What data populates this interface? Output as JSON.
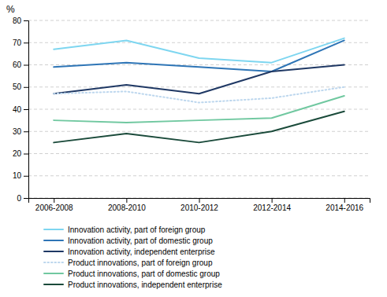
{
  "chart_data": {
    "type": "line",
    "ylabel": "%",
    "categories": [
      "2006-2008",
      "2008-2010",
      "2010-2012",
      "2012-2014",
      "2014-2016"
    ],
    "series": [
      {
        "name": "Innovation activity, part of foreign group",
        "color": "#7ed6f0",
        "line_style": "solid",
        "values": [
          67,
          71,
          63,
          61,
          72
        ]
      },
      {
        "name": "Innovation activity, part of domestic group",
        "color": "#2e75b6",
        "line_style": "solid",
        "values": [
          59,
          61,
          59,
          57,
          71
        ]
      },
      {
        "name": "Innovation activity, independent enterprise",
        "color": "#1f3864",
        "line_style": "solid",
        "values": [
          47,
          51,
          47,
          57,
          60
        ]
      },
      {
        "name": "Product innovations, part of foreign group",
        "color": "#bdd7ee",
        "line_style": "dotted",
        "values": [
          47,
          48,
          43,
          45,
          50
        ]
      },
      {
        "name": "Product innovations, part of domestic group",
        "color": "#70c8a0",
        "line_style": "solid",
        "values": [
          35,
          34,
          35,
          36,
          46
        ]
      },
      {
        "name": "Product innovations, independent enterprise",
        "color": "#1a4a3a",
        "line_style": "solid",
        "values": [
          25,
          29,
          25,
          30,
          39
        ]
      }
    ],
    "ylim": [
      0,
      80
    ],
    "yticks": [
      0,
      10,
      20,
      30,
      40,
      50,
      60,
      70,
      80
    ],
    "grid": true,
    "legend": "bottom"
  }
}
